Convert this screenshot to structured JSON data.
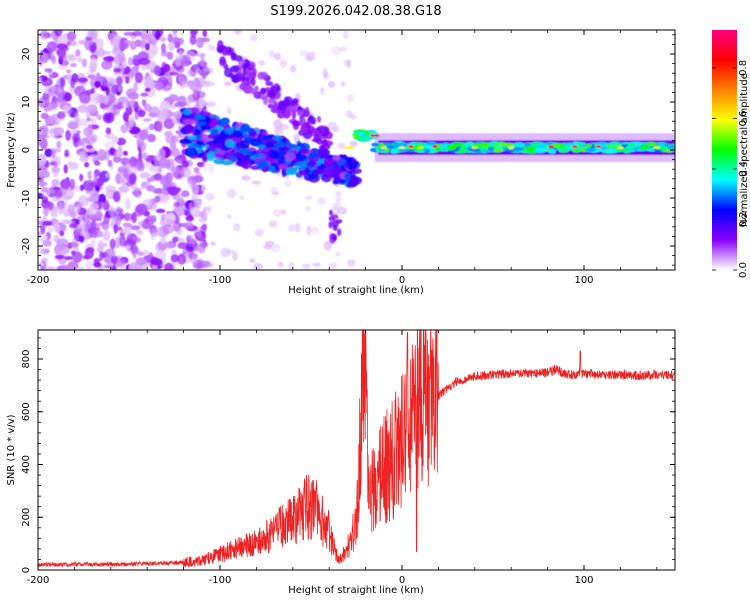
{
  "chart_data": [
    {
      "type": "heatmap",
      "title": "S199.2026.042.08.38.G18",
      "xlabel": "Height of straight line (km)",
      "ylabel": "Frequency (Hz)",
      "xlim": [
        -200,
        150
      ],
      "ylim": [
        -25,
        25
      ],
      "xticks": [
        -200,
        -100,
        0,
        100
      ],
      "xtick_labels": [
        "-200",
        "-100",
        "0",
        "100"
      ],
      "yticks": [
        -20,
        -10,
        0,
        10,
        20
      ],
      "ytick_labels": [
        "-20",
        "-10",
        "0",
        "10",
        "20"
      ],
      "colorbar": {
        "label": "Normalized spectral amplitude",
        "range": [
          0,
          0.95
        ],
        "ticks": [
          0.0,
          0.2,
          0.4,
          0.6,
          0.8
        ],
        "tick_labels": [
          "0.0",
          "0.2",
          "0.4",
          "0.6",
          "0.8"
        ],
        "colors": [
          "#ffffff",
          "#8b00ff",
          "#0000ff",
          "#00ffff",
          "#00ff00",
          "#ffff00",
          "#ff8000",
          "#ff0000",
          "#ff0080"
        ]
      },
      "features": [
        {
          "name": "scattered noise",
          "x_range": [
            -200,
            -120
          ],
          "freq_range": [
            -25,
            25
          ],
          "level": 0.1
        },
        {
          "name": "descending structure",
          "x_range": [
            -120,
            -25
          ],
          "freq_start": 4,
          "freq_end": -5,
          "level": 0.25
        },
        {
          "name": "steady tone",
          "x_range": [
            -25,
            150
          ],
          "freq": 0.5,
          "level": 0.45
        }
      ]
    },
    {
      "type": "line",
      "title": "",
      "xlabel": "Height of straight line (km)",
      "ylabel": "SNR (10 * v/v)",
      "xlim": [
        -200,
        150
      ],
      "ylim": [
        0,
        910
      ],
      "xticks": [
        -200,
        -100,
        0,
        100
      ],
      "xtick_labels": [
        "-200",
        "-100",
        "0",
        "100"
      ],
      "yticks": [
        0,
        200,
        400,
        600,
        800
      ],
      "ytick_labels": [
        "0",
        "200",
        "400",
        "600",
        "800"
      ],
      "series": [
        {
          "name": "SNR",
          "color": "#ee2222",
          "x": [
            -200,
            -150,
            -120,
            -110,
            -100,
            -90,
            -80,
            -70,
            -60,
            -50,
            -40,
            -35,
            -30,
            -25,
            -22,
            -20,
            -18,
            -15,
            -10,
            -5,
            0,
            5,
            8,
            10,
            15,
            20,
            25,
            30,
            40,
            50,
            60,
            70,
            80,
            85,
            90,
            95,
            100,
            110,
            120,
            130,
            140,
            150
          ],
          "values": [
            20,
            22,
            28,
            35,
            60,
            80,
            100,
            140,
            190,
            250,
            150,
            40,
            80,
            180,
            600,
            900,
            300,
            320,
            380,
            420,
            480,
            550,
            600,
            620,
            640,
            660,
            690,
            715,
            735,
            740,
            745,
            745,
            750,
            760,
            740,
            740,
            745,
            740,
            742,
            738,
            740,
            740
          ],
          "spikes": [
            {
              "x": -20,
              "value": 910
            },
            {
              "x": 3,
              "value": 900
            },
            {
              "x": 8,
              "value": 70
            },
            {
              "x": 98,
              "value": 830
            }
          ]
        }
      ]
    }
  ]
}
